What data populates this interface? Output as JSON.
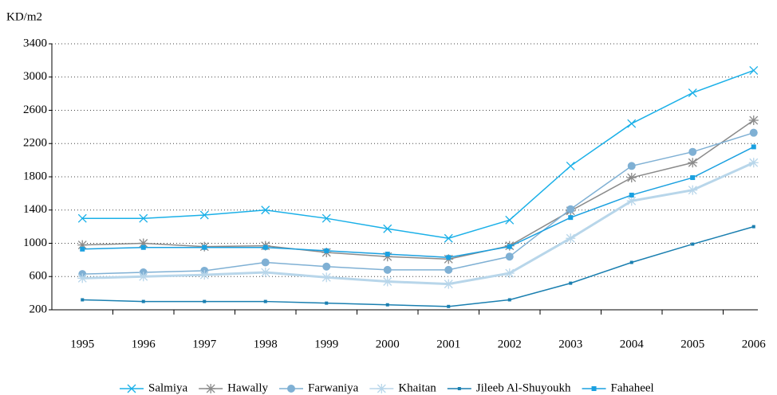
{
  "chart_data": {
    "type": "line",
    "y_label": "KD/m2",
    "categories": [
      "1995",
      "1996",
      "1997",
      "1998",
      "1999",
      "2000",
      "2001",
      "2002",
      "2003",
      "2004",
      "2005",
      "2006"
    ],
    "series": [
      {
        "name": "Salmiya",
        "color": "#1ab0e8",
        "marker": "x",
        "values": [
          1300,
          1300,
          1340,
          1400,
          1300,
          1175,
          1060,
          1280,
          1930,
          2440,
          2810,
          3080
        ]
      },
      {
        "name": "Hawally",
        "color": "#8a8a8a",
        "marker": "star",
        "values": [
          980,
          1000,
          960,
          970,
          890,
          840,
          810,
          970,
          1390,
          1790,
          1970,
          2480
        ]
      },
      {
        "name": "Farwaniya",
        "color": "#7fb0d4",
        "marker": "circle",
        "values": [
          630,
          650,
          670,
          770,
          720,
          680,
          680,
          840,
          1410,
          1930,
          2100,
          2330
        ]
      },
      {
        "name": "Khaitan",
        "color": "#b8d6ea",
        "marker": "star",
        "values": [
          580,
          600,
          620,
          650,
          590,
          540,
          510,
          640,
          1060,
          1510,
          1640,
          1970
        ]
      },
      {
        "name": "Jileeb Al-Shuyoukh",
        "color": "#1a7fb0",
        "marker": "smallsquare",
        "values": [
          320,
          300,
          300,
          300,
          280,
          260,
          240,
          320,
          520,
          770,
          990,
          1200
        ]
      },
      {
        "name": "Fahaheel",
        "color": "#1aa0e0",
        "marker": "square",
        "values": [
          930,
          950,
          950,
          950,
          910,
          870,
          830,
          960,
          1310,
          1580,
          1790,
          2160
        ]
      }
    ],
    "ylim": [
      200,
      3400
    ],
    "yticks": [
      200,
      600,
      1000,
      1400,
      1800,
      2200,
      2600,
      3000,
      3400
    ],
    "grid": true
  }
}
